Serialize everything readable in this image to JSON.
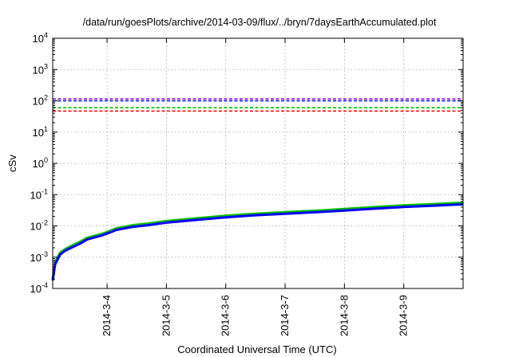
{
  "chart_data": {
    "type": "line",
    "title": "/data/run/goesPlots/archive/2014-03-09/flux/../bryn/7daysEarthAccumulated.plot",
    "xlabel": "Coordinated Universal Time (UTC)",
    "ylabel": "cSv",
    "yscale": "log",
    "ylim": [
      0.0001,
      10000
    ],
    "xlim": [
      "2014-03-03 02:00",
      "2014-03-10 00:00"
    ],
    "grid": true,
    "legend": "none",
    "y_ticks": [
      {
        "base": "10",
        "exp": "-4",
        "value": 0.0001
      },
      {
        "base": "10",
        "exp": "-3",
        "value": 0.001
      },
      {
        "base": "10",
        "exp": "-2",
        "value": 0.01
      },
      {
        "base": "10",
        "exp": "-1",
        "value": 0.1
      },
      {
        "base": "10",
        "exp": "0",
        "value": 1
      },
      {
        "base": "10",
        "exp": "1",
        "value": 10
      },
      {
        "base": "10",
        "exp": "2",
        "value": 100
      },
      {
        "base": "10",
        "exp": "3",
        "value": 1000
      },
      {
        "base": "10",
        "exp": "4",
        "value": 10000
      }
    ],
    "x_ticks": [
      {
        "label": "2014-3-4",
        "value": "2014-03-04"
      },
      {
        "label": "2014-3-5",
        "value": "2014-03-05"
      },
      {
        "label": "2014-3-6",
        "value": "2014-03-06"
      },
      {
        "label": "2014-3-7",
        "value": "2014-03-07"
      },
      {
        "label": "2014-3-8",
        "value": "2014-03-08"
      },
      {
        "label": "2014-3-9",
        "value": "2014-03-09"
      }
    ],
    "thresholds": [
      {
        "value": 115,
        "color": "#9400d3"
      },
      {
        "value": 100,
        "color": "#0000ff"
      },
      {
        "value": 60,
        "color": "#00c000"
      },
      {
        "value": 47,
        "color": "#ff0000"
      }
    ],
    "series": [
      {
        "color": "#00c000",
        "x": [
          "2014-03-03 02:00",
          "2014-03-03 03:00",
          "2014-03-03 05:00",
          "2014-03-03 07:00",
          "2014-03-03 10:00",
          "2014-03-03 13:00",
          "2014-03-03 16:00",
          "2014-03-03 19:00",
          "2014-03-03 22:00",
          "2014-03-04 00:00",
          "2014-03-04 04:00",
          "2014-03-04 10:00",
          "2014-03-04 16:00",
          "2014-03-05 00:00",
          "2014-03-05 12:00",
          "2014-03-06 00:00",
          "2014-03-06 12:00",
          "2014-03-07 00:00",
          "2014-03-07 12:00",
          "2014-03-08 00:00",
          "2014-03-08 12:00",
          "2014-03-09 00:00",
          "2014-03-09 12:00",
          "2014-03-10 00:00"
        ],
        "values": [
          0.0002,
          0.0007,
          0.0014,
          0.0018,
          0.0024,
          0.0031,
          0.0042,
          0.0048,
          0.0056,
          0.0064,
          0.0085,
          0.0104,
          0.0118,
          0.0143,
          0.0175,
          0.0212,
          0.0246,
          0.0276,
          0.0305,
          0.0348,
          0.04,
          0.0455,
          0.05,
          0.055
        ]
      },
      {
        "color": "#0000ff",
        "x": [
          "2014-03-03 02:00",
          "2014-03-03 03:00",
          "2014-03-03 05:00",
          "2014-03-03 07:00",
          "2014-03-03 10:00",
          "2014-03-03 13:00",
          "2014-03-03 16:00",
          "2014-03-03 19:00",
          "2014-03-03 22:00",
          "2014-03-04 00:00",
          "2014-03-04 04:00",
          "2014-03-04 10:00",
          "2014-03-04 16:00",
          "2014-03-05 00:00",
          "2014-03-05 12:00",
          "2014-03-06 00:00",
          "2014-03-06 12:00",
          "2014-03-07 00:00",
          "2014-03-07 12:00",
          "2014-03-08 00:00",
          "2014-03-08 12:00",
          "2014-03-09 00:00",
          "2014-03-09 12:00",
          "2014-03-10 00:00"
        ],
        "values": [
          0.00018,
          0.0006,
          0.0012,
          0.0016,
          0.0021,
          0.0027,
          0.0037,
          0.0043,
          0.005,
          0.0057,
          0.0075,
          0.0092,
          0.0104,
          0.0127,
          0.0155,
          0.0188,
          0.0219,
          0.0245,
          0.0272,
          0.0309,
          0.0355,
          0.0404,
          0.0444,
          0.0489
        ]
      }
    ]
  }
}
